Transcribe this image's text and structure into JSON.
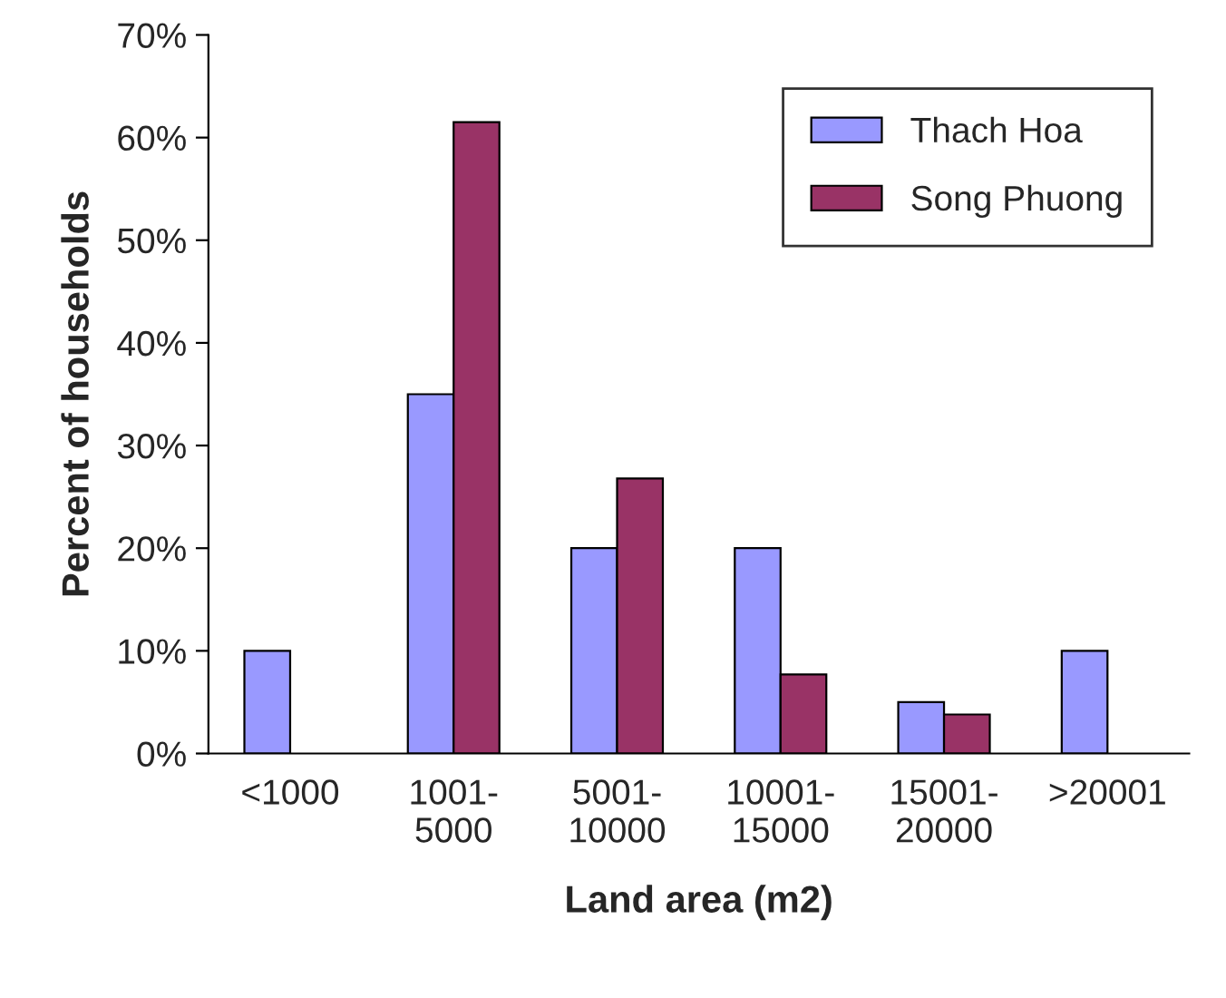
{
  "chart_data": {
    "type": "bar",
    "xlabel": "Land area (m2)",
    "ylabel": "Percent of households",
    "categories": [
      "<1000",
      "1001-\n5000",
      "5001-\n10000",
      "10001-\n15000",
      "15001-\n20000",
      ">20001"
    ],
    "series": [
      {
        "name": "Thach Hoa",
        "color": "#9999ff",
        "values": [
          10,
          35,
          20,
          20,
          5,
          10
        ]
      },
      {
        "name": "Song Phuong",
        "color": "#993366",
        "values": [
          null,
          61.5,
          26.8,
          7.7,
          3.8,
          null
        ]
      }
    ],
    "ylim": [
      0,
      70
    ],
    "yticks": [
      {
        "value": 0,
        "label": "0%"
      },
      {
        "value": 10,
        "label": "10%"
      },
      {
        "value": 20,
        "label": "20%"
      },
      {
        "value": 30,
        "label": "30%"
      },
      {
        "value": 40,
        "label": "40%"
      },
      {
        "value": 50,
        "label": "50%"
      },
      {
        "value": 60,
        "label": "60%"
      },
      {
        "value": 70,
        "label": "70%"
      }
    ],
    "grid": false,
    "legend": "top right"
  }
}
